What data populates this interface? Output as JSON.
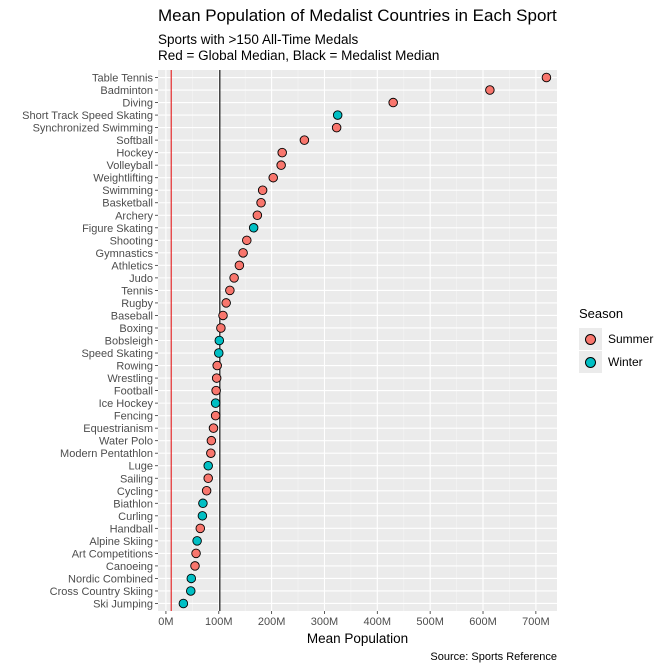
{
  "chart_data": {
    "type": "scatter",
    "title": "Mean Population of Medalist Countries in Each Sport",
    "subtitle_lines": [
      "Sports with >150 All-Time Medals",
      "Red = Global Median, Black = Medalist Median"
    ],
    "xlabel": "Mean Population",
    "ylabel": "",
    "caption": "Source: Sports Reference",
    "xlim": [
      -15,
      740
    ],
    "x_ticks": [
      0,
      100,
      200,
      300,
      400,
      500,
      600,
      700
    ],
    "x_tick_labels": [
      "0M",
      "100M",
      "200M",
      "300M",
      "400M",
      "500M",
      "600M",
      "700M"
    ],
    "x_unit": "millions",
    "reference_lines": [
      {
        "name": "Global Median",
        "value": 10,
        "color": "#e41a1c"
      },
      {
        "name": "Medalist Median",
        "value": 102,
        "color": "#000000"
      }
    ],
    "legend": {
      "title": "Season",
      "position": "right",
      "items": [
        {
          "label": "Summer",
          "color": "#F8766D"
        },
        {
          "label": "Winter",
          "color": "#00BFC4"
        }
      ]
    },
    "points": [
      {
        "sport": "Table Tennis",
        "value": 720,
        "season": "Summer"
      },
      {
        "sport": "Badminton",
        "value": 613,
        "season": "Summer"
      },
      {
        "sport": "Diving",
        "value": 430,
        "season": "Summer"
      },
      {
        "sport": "Short Track Speed Skating",
        "value": 325,
        "season": "Winter"
      },
      {
        "sport": "Synchronized Swimming",
        "value": 323,
        "season": "Summer"
      },
      {
        "sport": "Softball",
        "value": 262,
        "season": "Summer"
      },
      {
        "sport": "Hockey",
        "value": 220,
        "season": "Summer"
      },
      {
        "sport": "Volleyball",
        "value": 218,
        "season": "Summer"
      },
      {
        "sport": "Weightlifting",
        "value": 203,
        "season": "Summer"
      },
      {
        "sport": "Swimming",
        "value": 183,
        "season": "Summer"
      },
      {
        "sport": "Basketball",
        "value": 180,
        "season": "Summer"
      },
      {
        "sport": "Archery",
        "value": 173,
        "season": "Summer"
      },
      {
        "sport": "Figure Skating",
        "value": 166,
        "season": "Winter"
      },
      {
        "sport": "Shooting",
        "value": 153,
        "season": "Summer"
      },
      {
        "sport": "Gymnastics",
        "value": 146,
        "season": "Summer"
      },
      {
        "sport": "Athletics",
        "value": 139,
        "season": "Summer"
      },
      {
        "sport": "Judo",
        "value": 129,
        "season": "Summer"
      },
      {
        "sport": "Tennis",
        "value": 121,
        "season": "Summer"
      },
      {
        "sport": "Rugby",
        "value": 114,
        "season": "Summer"
      },
      {
        "sport": "Baseball",
        "value": 108,
        "season": "Summer"
      },
      {
        "sport": "Boxing",
        "value": 104,
        "season": "Summer"
      },
      {
        "sport": "Bobsleigh",
        "value": 101,
        "season": "Winter"
      },
      {
        "sport": "Speed Skating",
        "value": 100,
        "season": "Winter"
      },
      {
        "sport": "Rowing",
        "value": 97,
        "season": "Summer"
      },
      {
        "sport": "Wrestling",
        "value": 96,
        "season": "Summer"
      },
      {
        "sport": "Football",
        "value": 95,
        "season": "Summer"
      },
      {
        "sport": "Ice Hockey",
        "value": 94,
        "season": "Winter"
      },
      {
        "sport": "Fencing",
        "value": 94,
        "season": "Summer"
      },
      {
        "sport": "Equestrianism",
        "value": 90,
        "season": "Summer"
      },
      {
        "sport": "Water Polo",
        "value": 86,
        "season": "Summer"
      },
      {
        "sport": "Modern Pentathlon",
        "value": 85,
        "season": "Summer"
      },
      {
        "sport": "Luge",
        "value": 80,
        "season": "Winter"
      },
      {
        "sport": "Sailing",
        "value": 80,
        "season": "Summer"
      },
      {
        "sport": "Cycling",
        "value": 77,
        "season": "Summer"
      },
      {
        "sport": "Biathlon",
        "value": 70,
        "season": "Winter"
      },
      {
        "sport": "Curling",
        "value": 69,
        "season": "Winter"
      },
      {
        "sport": "Handball",
        "value": 65,
        "season": "Summer"
      },
      {
        "sport": "Alpine Skiing",
        "value": 59,
        "season": "Winter"
      },
      {
        "sport": "Art Competitions",
        "value": 57,
        "season": "Summer"
      },
      {
        "sport": "Canoeing",
        "value": 55,
        "season": "Summer"
      },
      {
        "sport": "Nordic Combined",
        "value": 48,
        "season": "Winter"
      },
      {
        "sport": "Cross Country Skiing",
        "value": 47,
        "season": "Winter"
      },
      {
        "sport": "Ski Jumping",
        "value": 33,
        "season": "Winter"
      }
    ]
  }
}
